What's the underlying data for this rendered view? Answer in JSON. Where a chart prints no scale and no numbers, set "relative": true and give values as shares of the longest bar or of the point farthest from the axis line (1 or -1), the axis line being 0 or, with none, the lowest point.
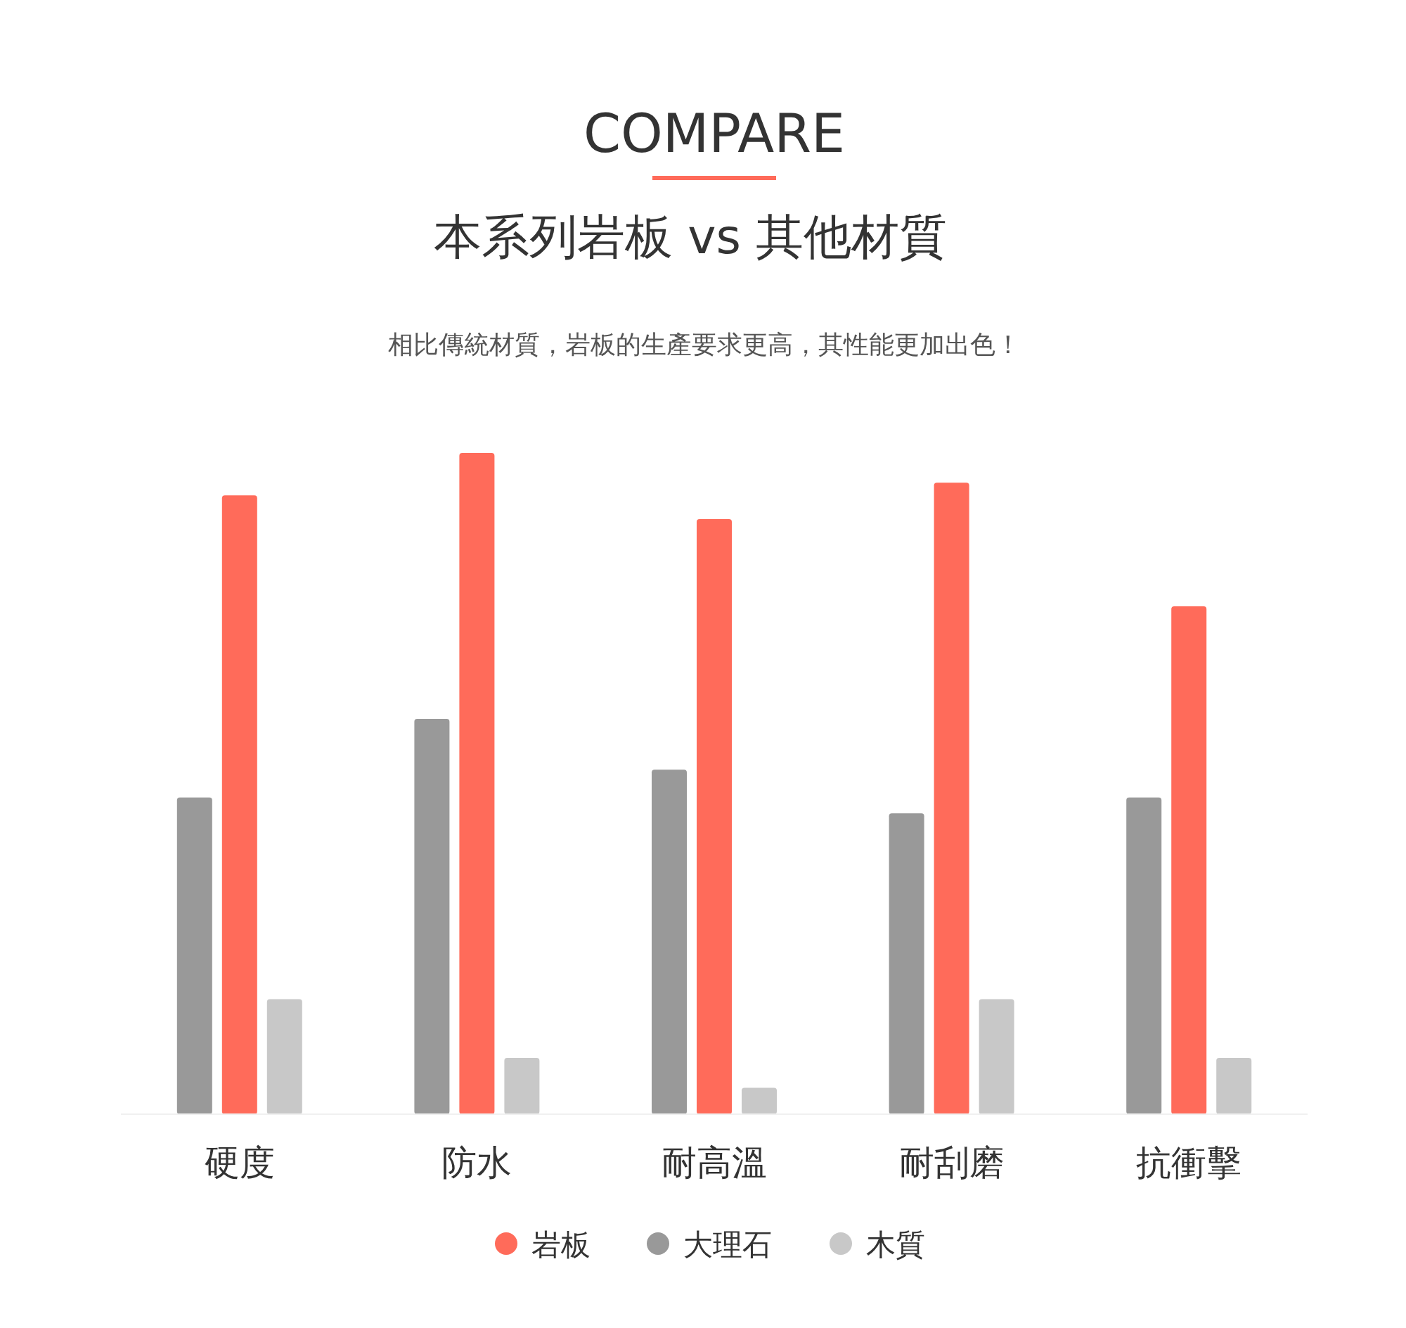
{
  "chart_data": {
    "type": "bar",
    "title": "COMPARE",
    "subtitle": "本系列岩板 vs 其他材質",
    "annotations": [
      "相比傳統材質，岩板的生產要求更高，其性能更加出色！"
    ],
    "categories": [
      "硬度",
      "防水",
      "耐高溫",
      "耐刮磨",
      "抗衝擊"
    ],
    "relative": true,
    "legend": "bottom",
    "grid": false,
    "series": [
      {
        "name": "岩板",
        "color": "#ff6b5a",
        "values": [
          0.936,
          1,
          0.9,
          0.955,
          0.768
        ]
      },
      {
        "name": "大理石",
        "color": "#999999",
        "values": [
          0.479,
          0.598,
          0.521,
          0.455,
          0.479
        ]
      },
      {
        "name": "木質",
        "color": "#c8c8c8",
        "values": [
          0.174,
          0.085,
          0.04,
          0.174,
          0.085
        ]
      }
    ]
  }
}
